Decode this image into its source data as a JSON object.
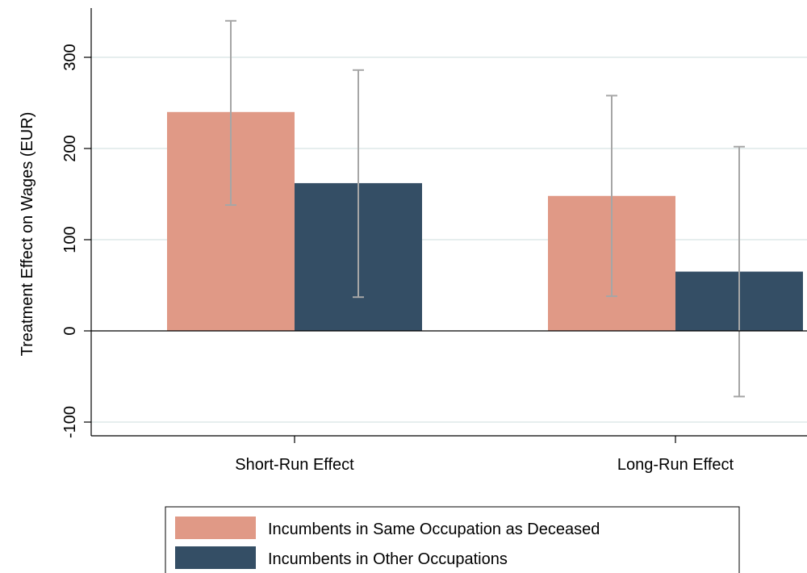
{
  "chart_data": {
    "type": "bar",
    "categories": [
      "Short-Run Effect",
      "Long-Run Effect"
    ],
    "series": [
      {
        "name": "Incumbents in Same Occupation as Deceased",
        "color": "#e09986",
        "values": [
          240,
          148
        ],
        "ci_low": [
          138,
          38
        ],
        "ci_high": [
          340,
          258
        ]
      },
      {
        "name": "Incumbents in Other Occupations",
        "color": "#344e65",
        "values": [
          162,
          65
        ],
        "ci_low": [
          37,
          -72
        ],
        "ci_high": [
          286,
          202
        ]
      }
    ],
    "title": "",
    "xlabel": "",
    "ylabel": "Treatment Effect on Wages (EUR)",
    "ylim": [
      -120,
      355
    ],
    "yticks": [
      -100,
      0,
      100,
      200,
      300
    ],
    "ytick_labels": [
      "-100",
      "0",
      "100",
      "200",
      "300"
    ],
    "grid": true,
    "error_bar_color": "#a6a6a6",
    "grid_color": "#e6eeee",
    "legend_position": "bottom"
  }
}
